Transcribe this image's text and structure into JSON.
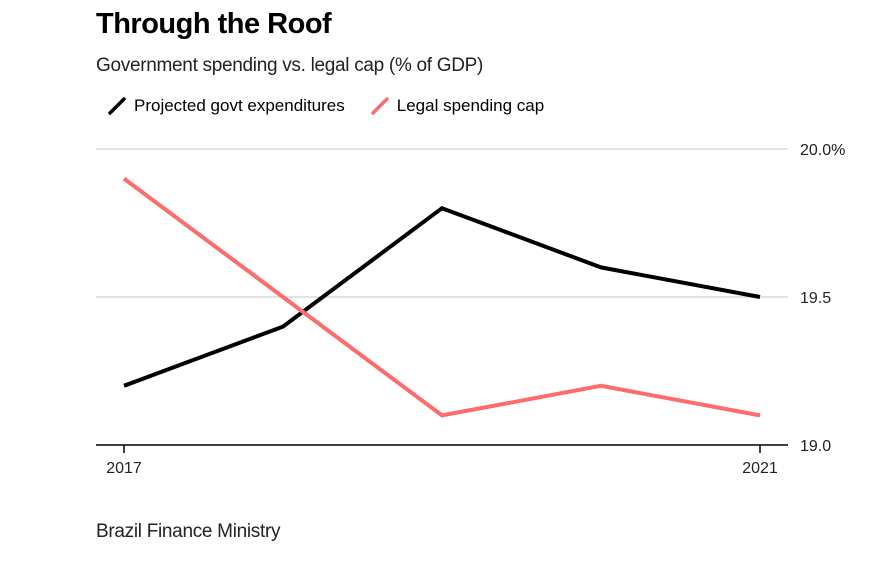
{
  "title": "Through the Roof",
  "subtitle": "Government spending vs. legal cap (% of GDP)",
  "source": "Brazil Finance Ministry",
  "legend": [
    {
      "label": "Projected govt expenditures",
      "color": "#000000",
      "icon": "diagonal-line-icon"
    },
    {
      "label": "Legal spending cap",
      "color": "#ff6b6b",
      "icon": "diagonal-line-icon"
    }
  ],
  "chart_data": {
    "type": "line",
    "title": "Through the Roof",
    "subtitle": "Government spending vs. legal cap (% of GDP)",
    "x": [
      2017,
      2018,
      2019,
      2020,
      2021
    ],
    "x_tick_values": [
      2017,
      2021
    ],
    "x_tick_labels": [
      "2017",
      "2021"
    ],
    "y_tick_values": [
      19.0,
      19.5,
      20.0
    ],
    "y_tick_labels": [
      "19.0",
      "19.5",
      "20.0%"
    ],
    "ylim": [
      19.0,
      20.0
    ],
    "xlim": [
      2017,
      2021
    ],
    "grid": true,
    "legend_position": "top-left",
    "y_axis_position": "right",
    "series": [
      {
        "name": "Projected govt expenditures",
        "color": "#000000",
        "values": [
          19.2,
          19.4,
          19.8,
          19.6,
          19.5
        ]
      },
      {
        "name": "Legal spending cap",
        "color": "#ff6b6b",
        "values": [
          19.9,
          19.5,
          19.1,
          19.2,
          19.1
        ]
      }
    ]
  }
}
